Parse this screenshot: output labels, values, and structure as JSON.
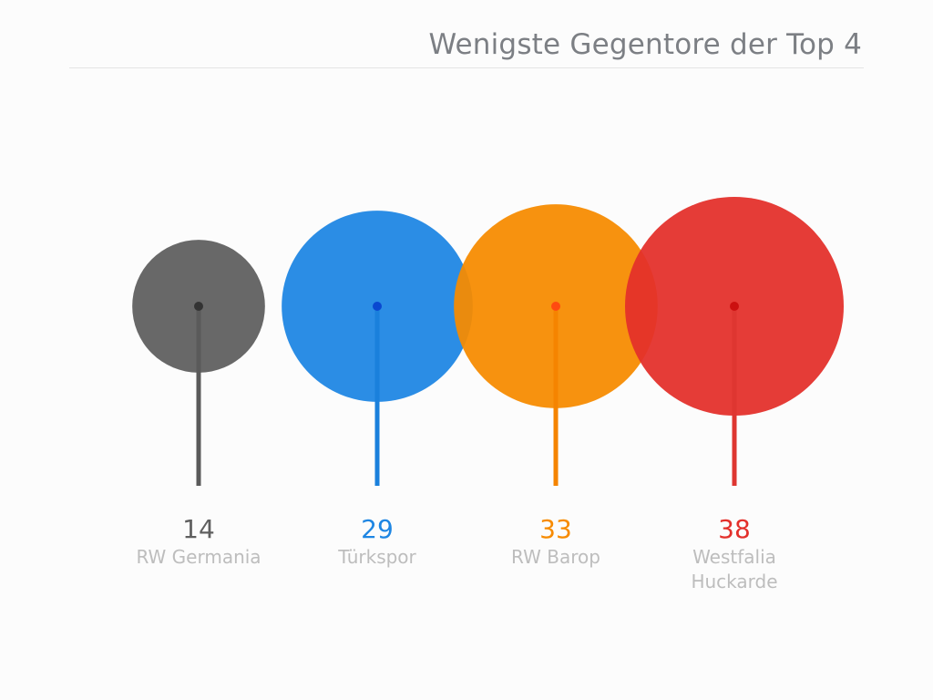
{
  "title": "Wenigste Gegentore der Top 4",
  "colors": {
    "title": "#7c7f84",
    "label": "#bdbdbd",
    "rule": "#e4e4e4"
  },
  "chart_data": {
    "type": "scatter",
    "title": "Wenigste Gegentore der Top 4",
    "categories": [
      "RW Germania",
      "Türkspor",
      "RW Barop",
      "Westfalia Huckarde"
    ],
    "label_lines": [
      [
        "RW Germania"
      ],
      [
        "Türkspor"
      ],
      [
        "RW Barop"
      ],
      [
        "Westfalia",
        "Huckarde"
      ]
    ],
    "values": [
      14,
      29,
      33,
      38
    ],
    "colors": [
      "#5f5f5f",
      "#1e86e3",
      "#f78b00",
      "#e3302b"
    ],
    "stem_colors": [
      "#5a5a5a",
      "#1a80dc",
      "#f58400",
      "#de3631"
    ],
    "center_colors": [
      "#333333",
      "#0a48d0",
      "#ff4a10",
      "#cc1010"
    ]
  }
}
